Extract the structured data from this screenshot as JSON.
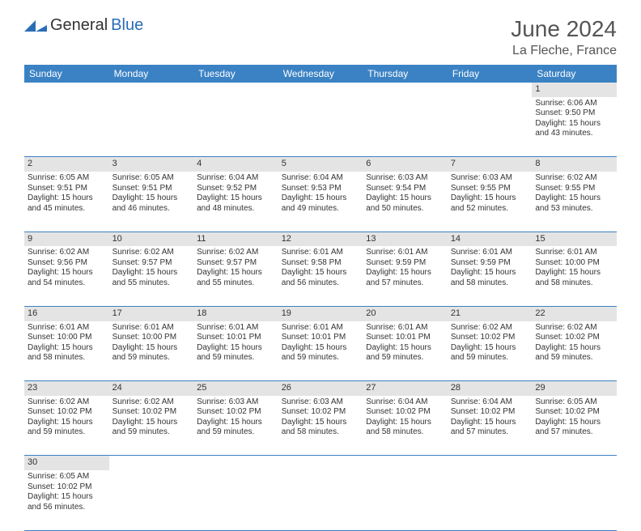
{
  "brand": {
    "part1": "General",
    "part2": "Blue"
  },
  "title": "June 2024",
  "location": "La Fleche, France",
  "colors": {
    "header_bg": "#3b82c4",
    "header_text": "#ffffff",
    "daynum_bg": "#e4e4e4",
    "border": "#3b82c4",
    "brand_blue": "#2a6db5",
    "text": "#333333"
  },
  "columns": [
    "Sunday",
    "Monday",
    "Tuesday",
    "Wednesday",
    "Thursday",
    "Friday",
    "Saturday"
  ],
  "weeks": [
    [
      null,
      null,
      null,
      null,
      null,
      null,
      {
        "n": "1",
        "sr": "6:06 AM",
        "ss": "9:50 PM",
        "dl": "15 hours and 43 minutes."
      }
    ],
    [
      {
        "n": "2",
        "sr": "6:05 AM",
        "ss": "9:51 PM",
        "dl": "15 hours and 45 minutes."
      },
      {
        "n": "3",
        "sr": "6:05 AM",
        "ss": "9:51 PM",
        "dl": "15 hours and 46 minutes."
      },
      {
        "n": "4",
        "sr": "6:04 AM",
        "ss": "9:52 PM",
        "dl": "15 hours and 48 minutes."
      },
      {
        "n": "5",
        "sr": "6:04 AM",
        "ss": "9:53 PM",
        "dl": "15 hours and 49 minutes."
      },
      {
        "n": "6",
        "sr": "6:03 AM",
        "ss": "9:54 PM",
        "dl": "15 hours and 50 minutes."
      },
      {
        "n": "7",
        "sr": "6:03 AM",
        "ss": "9:55 PM",
        "dl": "15 hours and 52 minutes."
      },
      {
        "n": "8",
        "sr": "6:02 AM",
        "ss": "9:55 PM",
        "dl": "15 hours and 53 minutes."
      }
    ],
    [
      {
        "n": "9",
        "sr": "6:02 AM",
        "ss": "9:56 PM",
        "dl": "15 hours and 54 minutes."
      },
      {
        "n": "10",
        "sr": "6:02 AM",
        "ss": "9:57 PM",
        "dl": "15 hours and 55 minutes."
      },
      {
        "n": "11",
        "sr": "6:02 AM",
        "ss": "9:57 PM",
        "dl": "15 hours and 55 minutes."
      },
      {
        "n": "12",
        "sr": "6:01 AM",
        "ss": "9:58 PM",
        "dl": "15 hours and 56 minutes."
      },
      {
        "n": "13",
        "sr": "6:01 AM",
        "ss": "9:59 PM",
        "dl": "15 hours and 57 minutes."
      },
      {
        "n": "14",
        "sr": "6:01 AM",
        "ss": "9:59 PM",
        "dl": "15 hours and 58 minutes."
      },
      {
        "n": "15",
        "sr": "6:01 AM",
        "ss": "10:00 PM",
        "dl": "15 hours and 58 minutes."
      }
    ],
    [
      {
        "n": "16",
        "sr": "6:01 AM",
        "ss": "10:00 PM",
        "dl": "15 hours and 58 minutes."
      },
      {
        "n": "17",
        "sr": "6:01 AM",
        "ss": "10:00 PM",
        "dl": "15 hours and 59 minutes."
      },
      {
        "n": "18",
        "sr": "6:01 AM",
        "ss": "10:01 PM",
        "dl": "15 hours and 59 minutes."
      },
      {
        "n": "19",
        "sr": "6:01 AM",
        "ss": "10:01 PM",
        "dl": "15 hours and 59 minutes."
      },
      {
        "n": "20",
        "sr": "6:01 AM",
        "ss": "10:01 PM",
        "dl": "15 hours and 59 minutes."
      },
      {
        "n": "21",
        "sr": "6:02 AM",
        "ss": "10:02 PM",
        "dl": "15 hours and 59 minutes."
      },
      {
        "n": "22",
        "sr": "6:02 AM",
        "ss": "10:02 PM",
        "dl": "15 hours and 59 minutes."
      }
    ],
    [
      {
        "n": "23",
        "sr": "6:02 AM",
        "ss": "10:02 PM",
        "dl": "15 hours and 59 minutes."
      },
      {
        "n": "24",
        "sr": "6:02 AM",
        "ss": "10:02 PM",
        "dl": "15 hours and 59 minutes."
      },
      {
        "n": "25",
        "sr": "6:03 AM",
        "ss": "10:02 PM",
        "dl": "15 hours and 59 minutes."
      },
      {
        "n": "26",
        "sr": "6:03 AM",
        "ss": "10:02 PM",
        "dl": "15 hours and 58 minutes."
      },
      {
        "n": "27",
        "sr": "6:04 AM",
        "ss": "10:02 PM",
        "dl": "15 hours and 58 minutes."
      },
      {
        "n": "28",
        "sr": "6:04 AM",
        "ss": "10:02 PM",
        "dl": "15 hours and 57 minutes."
      },
      {
        "n": "29",
        "sr": "6:05 AM",
        "ss": "10:02 PM",
        "dl": "15 hours and 57 minutes."
      }
    ],
    [
      {
        "n": "30",
        "sr": "6:05 AM",
        "ss": "10:02 PM",
        "dl": "15 hours and 56 minutes."
      },
      null,
      null,
      null,
      null,
      null,
      null
    ]
  ],
  "labels": {
    "sunrise": "Sunrise:",
    "sunset": "Sunset:",
    "daylight": "Daylight:"
  }
}
